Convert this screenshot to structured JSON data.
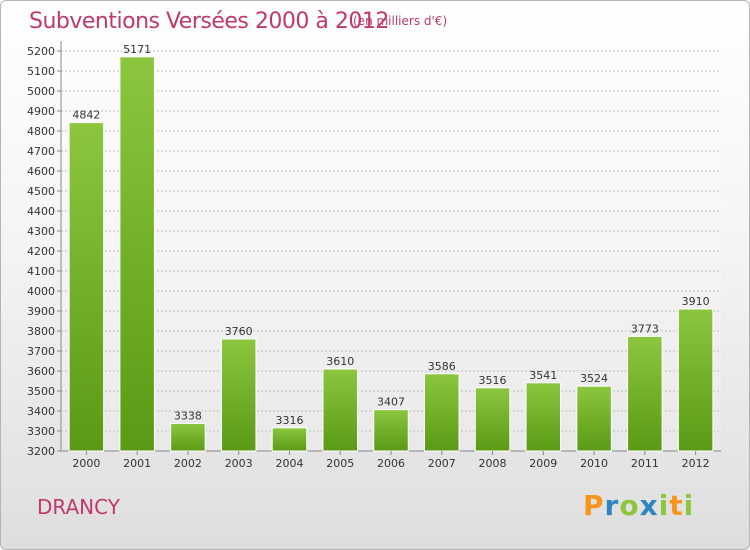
{
  "chart_data": {
    "type": "bar",
    "title": "Subventions Versées 2000 à 2012",
    "subtitle": "(en milliers d'€)",
    "categories": [
      "2000",
      "2001",
      "2002",
      "2003",
      "2004",
      "2005",
      "2006",
      "2007",
      "2008",
      "2009",
      "2010",
      "2011",
      "2012"
    ],
    "values": [
      4842,
      5171,
      3338,
      3760,
      3316,
      3610,
      3407,
      3586,
      3516,
      3541,
      3524,
      3773,
      3910
    ],
    "data_labels": [
      "4842",
      "5171",
      "3338",
      "3760",
      "3316",
      "3610",
      "3407",
      "3586",
      "3516",
      "3541",
      "3524",
      "3773",
      "3910"
    ],
    "ylim": [
      3200,
      5250
    ],
    "yticks": [
      3200,
      3300,
      3400,
      3500,
      3600,
      3700,
      3800,
      3900,
      4000,
      4100,
      4200,
      4300,
      4400,
      4500,
      4600,
      4700,
      4800,
      4900,
      5000,
      5100,
      5200
    ],
    "grid": true,
    "bar_color": "#8cc63f",
    "bar_color_dark": "#5a9a14"
  },
  "location": "DRANCY",
  "logo": {
    "letters": [
      "P",
      "r",
      "o",
      "x",
      "i",
      "t",
      "i"
    ],
    "colors": [
      "#f7941d",
      "#2e86c1",
      "#8cc63f",
      "#2e86c1",
      "#8cc63f",
      "#f7941d",
      "#8cc63f"
    ]
  }
}
